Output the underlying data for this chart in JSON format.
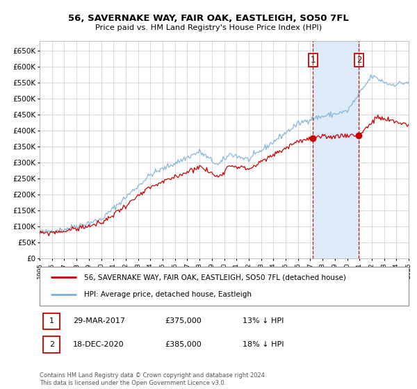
{
  "title": "56, SAVERNAKE WAY, FAIR OAK, EASTLEIGH, SO50 7FL",
  "subtitle": "Price paid vs. HM Land Registry's House Price Index (HPI)",
  "legend_line1": "56, SAVERNAKE WAY, FAIR OAK, EASTLEIGH, SO50 7FL (detached house)",
  "legend_line2": "HPI: Average price, detached house, Eastleigh",
  "annotation1_date": "29-MAR-2017",
  "annotation1_price": "£375,000",
  "annotation1_hpi": "13% ↓ HPI",
  "annotation2_date": "18-DEC-2020",
  "annotation2_price": "£385,000",
  "annotation2_hpi": "18% ↓ HPI",
  "sale1_year": 2017.23,
  "sale1_value": 375000,
  "sale2_year": 2020.96,
  "sale2_value": 385000,
  "vline1_year": 2017.23,
  "vline2_year": 2020.96,
  "copyright_text": "Contains HM Land Registry data © Crown copyright and database right 2024.\nThis data is licensed under the Open Government Licence v3.0.",
  "hpi_color": "#7bafd4",
  "hpi_shade_color": "#ddeaf7",
  "price_color": "#cc0000",
  "sale_dot_color": "#cc0000",
  "vline_color": "#cc0000",
  "background_color": "#ffffff",
  "grid_color": "#cccccc",
  "ylim_min": 0,
  "ylim_max": 680000,
  "xlim_min": 1995,
  "xlim_max": 2025
}
